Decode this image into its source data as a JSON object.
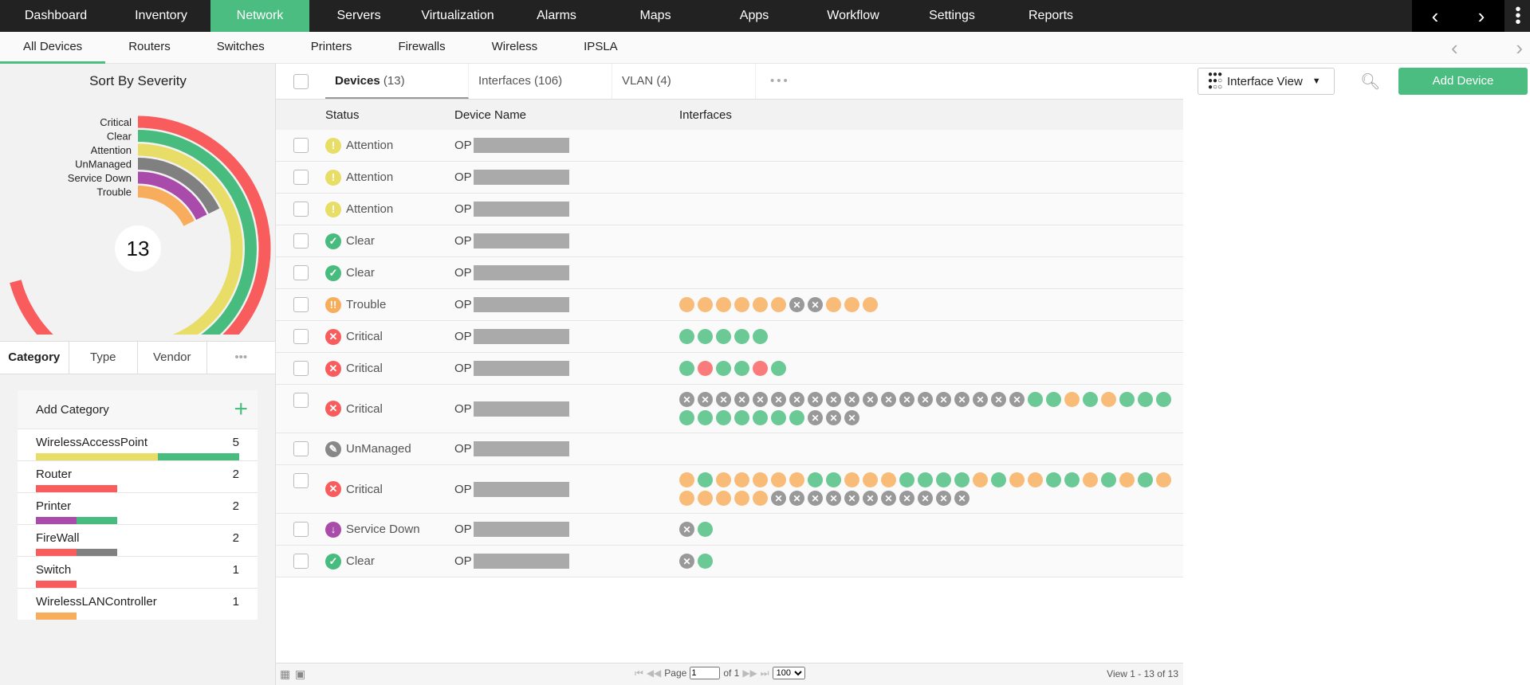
{
  "topnav": {
    "items": [
      "Dashboard",
      "Inventory",
      "Network",
      "Servers",
      "Virtualization",
      "Alarms",
      "Maps",
      "Apps",
      "Workflow",
      "Settings",
      "Reports"
    ],
    "active": "Network"
  },
  "subnav": {
    "items": [
      "All Devices",
      "Routers",
      "Switches",
      "Printers",
      "Firewalls",
      "Wireless",
      "IPSLA"
    ],
    "active": "All Devices"
  },
  "severity": {
    "title": "Sort By Severity",
    "total": "13",
    "chart_data": {
      "type": "radial-bar",
      "series": [
        {
          "name": "Critical",
          "value": 4,
          "color": "#f85c5c"
        },
        {
          "name": "Clear",
          "value": 3,
          "color": "#48bb7e"
        },
        {
          "name": "Attention",
          "value": 3,
          "color": "#e8dd66"
        },
        {
          "name": "UnManaged",
          "value": 1,
          "color": "#808080"
        },
        {
          "name": "Service Down",
          "value": 1,
          "color": "#a94bab"
        },
        {
          "name": "Trouble",
          "value": 1,
          "color": "#f8ad5c"
        }
      ]
    }
  },
  "left_tabs": [
    "Category",
    "Type",
    "Vendor"
  ],
  "categories": {
    "add_label": "Add Category",
    "items": [
      {
        "name": "WirelessAccessPoint",
        "count": "5",
        "segments": [
          [
            "#e8dd66",
            3
          ],
          [
            "#48bb7e",
            2
          ]
        ]
      },
      {
        "name": "Router",
        "count": "2",
        "segments": [
          [
            "#f85c5c",
            2
          ]
        ]
      },
      {
        "name": "Printer",
        "count": "2",
        "segments": [
          [
            "#a94bab",
            1
          ],
          [
            "#48bb7e",
            1
          ]
        ]
      },
      {
        "name": "FireWall",
        "count": "2",
        "segments": [
          [
            "#f85c5c",
            1
          ],
          [
            "#808080",
            1
          ]
        ]
      },
      {
        "name": "Switch",
        "count": "1",
        "segments": [
          [
            "#f85c5c",
            1
          ]
        ]
      },
      {
        "name": "WirelessLANController",
        "count": "1",
        "segments": [
          [
            "#f8ad5c",
            1
          ]
        ]
      }
    ]
  },
  "tabs": [
    {
      "label": "Devices",
      "count": "(13)"
    },
    {
      "label": "Interfaces",
      "count": "(106)"
    },
    {
      "label": "VLAN",
      "count": "(4)"
    }
  ],
  "toolbar": {
    "view_label": "Interface View",
    "add_label": "Add Device"
  },
  "columns": [
    "Status",
    "Device Name",
    "Interfaces"
  ],
  "status_styles": {
    "Attention": {
      "color": "#e8dd66",
      "glyph": "!"
    },
    "Clear": {
      "color": "#48bb7e",
      "glyph": "✓"
    },
    "Trouble": {
      "color": "#f8ad5c",
      "glyph": "!!"
    },
    "Critical": {
      "color": "#f85c5c",
      "glyph": "✕"
    },
    "UnManaged": {
      "color": "#888888",
      "glyph": "✎"
    },
    "Service Down": {
      "color": "#a94bab",
      "glyph": "↓"
    }
  },
  "interface_colors": {
    "o": "#f9bc78",
    "g": "#6ac995",
    "r": "#fa7b7b",
    "x": "#999999"
  },
  "rows": [
    {
      "status": "Attention",
      "name": "OP",
      "interfaces": ""
    },
    {
      "status": "Attention",
      "name": "OP",
      "interfaces": ""
    },
    {
      "status": "Attention",
      "name": "OP",
      "interfaces": ""
    },
    {
      "status": "Clear",
      "name": "OP",
      "interfaces": ""
    },
    {
      "status": "Clear",
      "name": "OP",
      "interfaces": ""
    },
    {
      "status": "Trouble",
      "name": "OP",
      "interfaces": "ooooooxxooo"
    },
    {
      "status": "Critical",
      "name": "OP",
      "interfaces": "ggggg"
    },
    {
      "status": "Critical",
      "name": "OP",
      "interfaces": "grggrg"
    },
    {
      "status": "Critical",
      "name": "OP",
      "interfaces": "xxxxxxxxxxxxxxxxxxxggogoggggggggggxxx"
    },
    {
      "status": "UnManaged",
      "name": "OP",
      "interfaces": ""
    },
    {
      "status": "Critical",
      "name": "OP",
      "interfaces": "ogoooooggoooggggogooggogogooooooxxxxxxxxxxx"
    },
    {
      "status": "Service Down",
      "name": "OP",
      "interfaces": "xg"
    },
    {
      "status": "Clear",
      "name": "OP",
      "interfaces": "xg"
    }
  ],
  "footer": {
    "page_label": "Page",
    "page_value": "1",
    "of_label": "of 1",
    "page_size": "100",
    "view_text": "View 1 - 13 of 13"
  }
}
